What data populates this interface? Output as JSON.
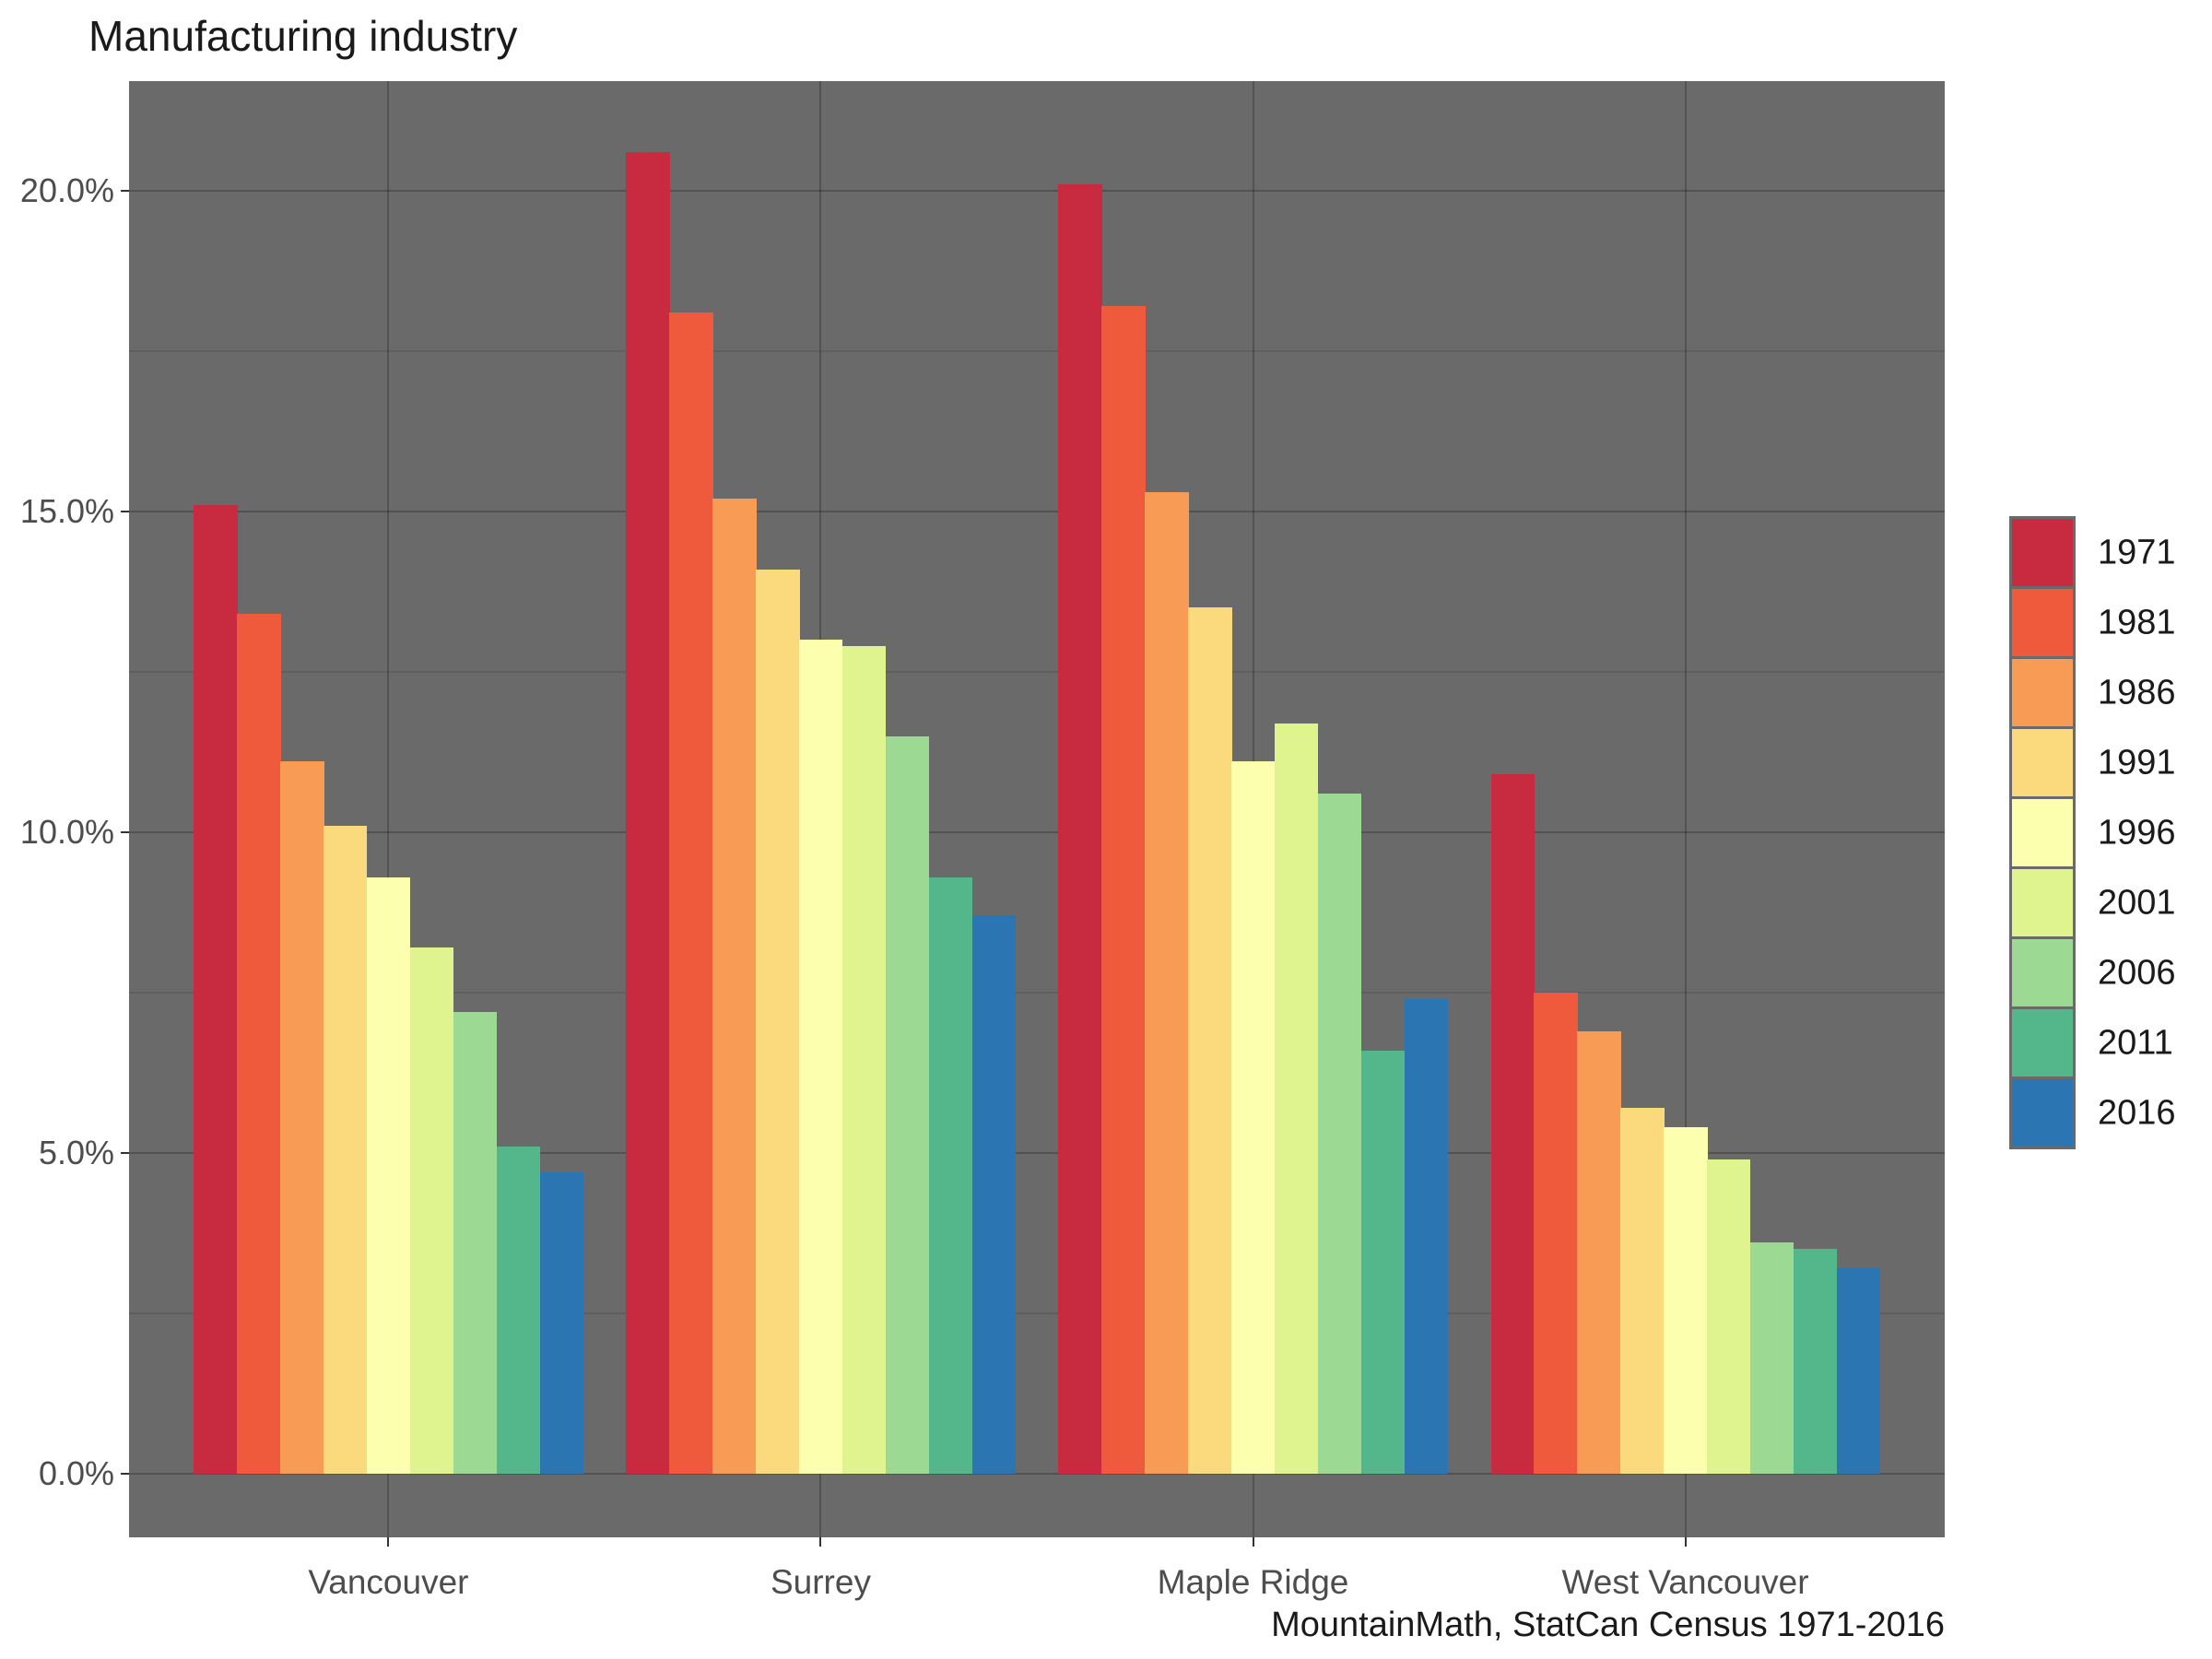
{
  "title": "Manufacturing industry",
  "caption": "MountainMath, StatCan Census 1971-2016",
  "panel": {
    "background": "#6A6A6A",
    "grid_major_color": "#565656",
    "grid_minor_color": "#606060"
  },
  "chart_data": {
    "type": "bar",
    "grouping": "dodged",
    "title": "Manufacturing industry",
    "xlabel": "",
    "ylabel": "",
    "categories": [
      "Vancouver",
      "Surrey",
      "Maple Ridge",
      "West Vancouver"
    ],
    "series": [
      {
        "name": "1971",
        "color": "#C82A3F",
        "values": [
          15.1,
          20.6,
          20.1,
          10.9
        ]
      },
      {
        "name": "1981",
        "color": "#EF5A3C",
        "values": [
          13.4,
          18.1,
          18.2,
          7.5
        ]
      },
      {
        "name": "1986",
        "color": "#F89C55",
        "values": [
          11.1,
          15.2,
          15.3,
          6.9
        ]
      },
      {
        "name": "1991",
        "color": "#FBD97D",
        "values": [
          10.1,
          14.1,
          13.5,
          5.7
        ]
      },
      {
        "name": "1996",
        "color": "#FCFFAE",
        "values": [
          9.3,
          13.0,
          11.1,
          5.4
        ]
      },
      {
        "name": "2001",
        "color": "#DFF38F",
        "values": [
          8.2,
          12.9,
          11.7,
          4.9
        ]
      },
      {
        "name": "2006",
        "color": "#9CD992",
        "values": [
          7.2,
          11.5,
          10.6,
          3.6
        ]
      },
      {
        "name": "2011",
        "color": "#54B78C",
        "values": [
          5.1,
          9.3,
          6.6,
          3.5
        ]
      },
      {
        "name": "2016",
        "color": "#2B76B2",
        "values": [
          4.7,
          8.7,
          7.4,
          3.2
        ]
      }
    ],
    "y_axis": {
      "tick_labels": [
        "0.0%",
        "5.0%",
        "10.0%",
        "15.0%",
        "20.0%"
      ],
      "tick_values": [
        0,
        5,
        10,
        15,
        20
      ],
      "minor_tick_values": [
        2.5,
        7.5,
        12.5,
        17.5
      ],
      "ylim": [
        -1.0,
        21.7
      ],
      "unit": "percent"
    },
    "legend": {
      "position": "right",
      "entries": [
        "1971",
        "1981",
        "1986",
        "1991",
        "1996",
        "2001",
        "2006",
        "2011",
        "2016"
      ]
    },
    "grid": true
  }
}
